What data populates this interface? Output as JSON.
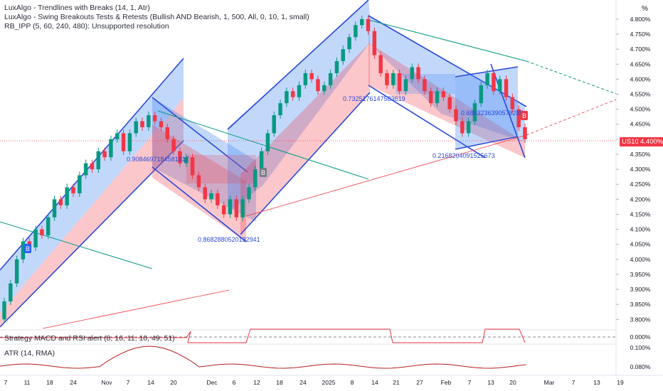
{
  "indicators": {
    "trendlines": "LuxAlgo - Trendlines with Breaks (14, 1, Atr)",
    "swing": "LuxAlgo - Swing Breakouts Tests & Retests (Bullish AND Bearish, 1, 500, All, 0, 10, 1, small)",
    "rb_ipp": "RB_IPP (5, 60, 240, 480): Unsupported resolution",
    "macd": "Strategy MACD and RSI alert (8, 16, 11, 10, 49, 51)",
    "atr": "ATR (14, RMA)"
  },
  "symbol": "US10Y",
  "current_price": "4.400%",
  "unit_label": "%",
  "chart_data": {
    "type": "candlestick",
    "y_unit": "%",
    "ylim": [
      3.77,
      4.84
    ],
    "y_ticks": [
      "4.800%",
      "4.750%",
      "4.700%",
      "4.650%",
      "4.600%",
      "4.550%",
      "4.500%",
      "4.450%",
      "4.400%",
      "4.350%",
      "4.300%",
      "4.250%",
      "4.200%",
      "4.150%",
      "4.100%",
      "4.050%",
      "4.000%",
      "3.950%",
      "3.900%",
      "3.850%",
      "3.800%"
    ],
    "x_ticks": [
      "7",
      "11",
      "18",
      "24",
      "Nov",
      "7",
      "14",
      "20",
      "Dec",
      "6",
      "12",
      "18",
      "24",
      "2025",
      "8",
      "14",
      "21",
      "27",
      "Feb",
      "7",
      "13",
      "20",
      "Mar",
      "7",
      "13",
      "19"
    ],
    "candles": [
      [
        3.8,
        3.86
      ],
      [
        3.86,
        3.92
      ],
      [
        3.92,
        4.0
      ],
      [
        4.0,
        4.06
      ],
      [
        4.06,
        4.04
      ],
      [
        4.04,
        4.1
      ],
      [
        4.1,
        4.08
      ],
      [
        4.08,
        4.14
      ],
      [
        4.14,
        4.2
      ],
      [
        4.2,
        4.18
      ],
      [
        4.18,
        4.24
      ],
      [
        4.24,
        4.22
      ],
      [
        4.22,
        4.28
      ],
      [
        4.28,
        4.32
      ],
      [
        4.32,
        4.3
      ],
      [
        4.3,
        4.36
      ],
      [
        4.36,
        4.34
      ],
      [
        4.34,
        4.4
      ],
      [
        4.4,
        4.42
      ],
      [
        4.42,
        4.36
      ],
      [
        4.36,
        4.42
      ],
      [
        4.42,
        4.46
      ],
      [
        4.46,
        4.44
      ],
      [
        4.44,
        4.48
      ],
      [
        4.48,
        4.46
      ],
      [
        4.46,
        4.44
      ],
      [
        4.44,
        4.4
      ],
      [
        4.4,
        4.36
      ],
      [
        4.36,
        4.32
      ],
      [
        4.32,
        4.34
      ],
      [
        4.34,
        4.28
      ],
      [
        4.28,
        4.24
      ],
      [
        4.24,
        4.2
      ],
      [
        4.2,
        4.22
      ],
      [
        4.22,
        4.18
      ],
      [
        4.18,
        4.15
      ],
      [
        4.15,
        4.2
      ],
      [
        4.2,
        4.14
      ],
      [
        4.14,
        4.2
      ],
      [
        4.2,
        4.24
      ],
      [
        4.24,
        4.3
      ],
      [
        4.3,
        4.36
      ],
      [
        4.36,
        4.42
      ],
      [
        4.42,
        4.48
      ],
      [
        4.48,
        4.52
      ],
      [
        4.52,
        4.56
      ],
      [
        4.56,
        4.54
      ],
      [
        4.54,
        4.58
      ],
      [
        4.58,
        4.62
      ],
      [
        4.62,
        4.6
      ],
      [
        4.6,
        4.56
      ],
      [
        4.56,
        4.58
      ],
      [
        4.58,
        4.62
      ],
      [
        4.62,
        4.66
      ],
      [
        4.66,
        4.7
      ],
      [
        4.7,
        4.74
      ],
      [
        4.74,
        4.78
      ],
      [
        4.78,
        4.8
      ],
      [
        4.8,
        4.76
      ],
      [
        4.76,
        4.68
      ],
      [
        4.68,
        4.62
      ],
      [
        4.62,
        4.58
      ],
      [
        4.58,
        4.62
      ],
      [
        4.62,
        4.56
      ],
      [
        4.56,
        4.6
      ],
      [
        4.6,
        4.64
      ],
      [
        4.64,
        4.6
      ],
      [
        4.6,
        4.56
      ],
      [
        4.56,
        4.52
      ],
      [
        4.52,
        4.56
      ],
      [
        4.56,
        4.54
      ],
      [
        4.54,
        4.5
      ],
      [
        4.5,
        4.46
      ],
      [
        4.46,
        4.42
      ],
      [
        4.42,
        4.46
      ],
      [
        4.46,
        4.52
      ],
      [
        4.52,
        4.58
      ],
      [
        4.58,
        4.62
      ],
      [
        4.62,
        4.56
      ],
      [
        4.56,
        4.6
      ],
      [
        4.6,
        4.54
      ],
      [
        4.54,
        4.5
      ],
      [
        4.5,
        4.44
      ],
      [
        4.44,
        4.4
      ]
    ],
    "annotations": [
      "0.9084697184581417",
      "0.8682880520132941",
      "0.7325176147583619",
      "0.6863236390578285",
      "0.2168204091525673"
    ],
    "signal_labels": [
      "B",
      "B",
      "B"
    ]
  }
}
